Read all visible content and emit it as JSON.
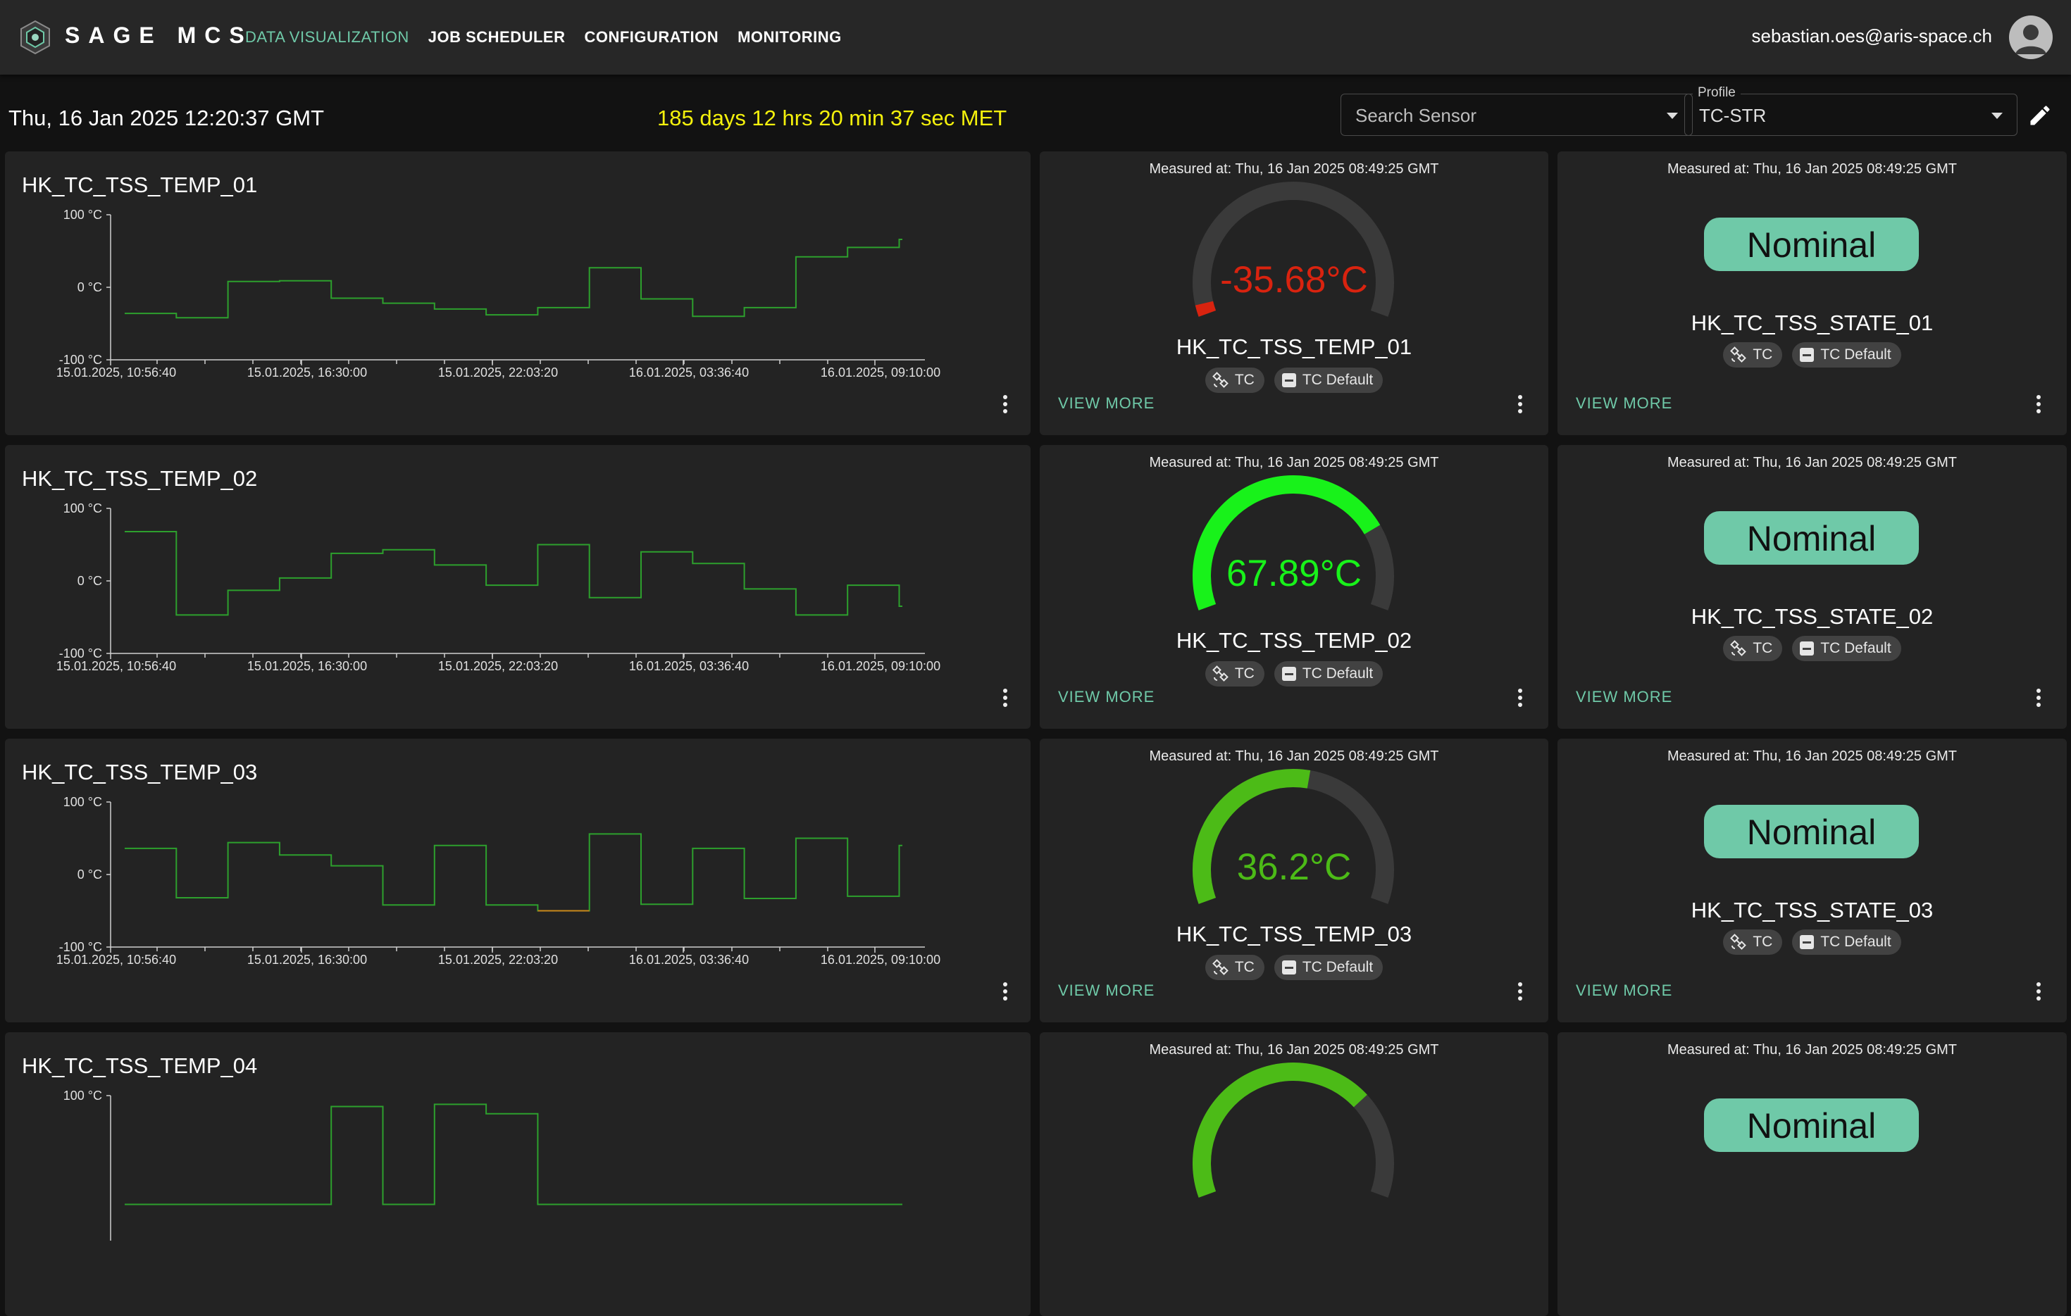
{
  "app": {
    "brand": "SAGE MCS",
    "nav": [
      {
        "label": "DATA VISUALIZATION",
        "active": true
      },
      {
        "label": "JOB SCHEDULER",
        "active": false
      },
      {
        "label": "CONFIGURATION",
        "active": false
      },
      {
        "label": "MONITORING",
        "active": false
      }
    ],
    "user_email": "sebastian.oes@aris-space.ch"
  },
  "toolbar": {
    "datetime": "Thu, 16 Jan 2025 12:20:37 GMT",
    "met": "185 days 12 hrs 20 min 37 sec MET",
    "search_placeholder": "Search Sensor",
    "profile_label": "Profile",
    "profile_value": "TC-STR"
  },
  "colors": {
    "accent": "#6fc9a8",
    "met": "#f4f10c",
    "gauge_red": "#d9230f",
    "gauge_bright_green": "#18f21a",
    "gauge_green": "#4cbb17",
    "line_green": "#2da02d",
    "line_orange": "#c98a1b"
  },
  "icons": [
    "logo-icon",
    "avatar-icon",
    "chevron-down-icon",
    "edit-icon",
    "satellite-icon",
    "minus-square-icon",
    "more-vert-icon"
  ],
  "rows": [
    {
      "chart": {
        "title": "HK_TC_TSS_TEMP_01",
        "type": "line",
        "y_ticks": [
          "100 °C",
          "0 °C",
          "-100 °C"
        ],
        "ylim": [
          -100,
          100
        ],
        "x_ticks": [
          "15.01.2025, 10:56:40",
          "15.01.2025, 16:30:00",
          "15.01.2025, 22:03:20",
          "16.01.2025, 03:36:40",
          "16.01.2025, 09:10:00"
        ],
        "values": [
          -36,
          -42,
          8,
          9,
          -15,
          -22,
          -30,
          -38,
          -28,
          27,
          -16,
          -40,
          -28,
          42,
          55,
          66
        ]
      },
      "gauge": {
        "measured": "Measured at: Thu, 16 Jan 2025 08:49:25 GMT",
        "value_text": "-35.68°C",
        "value": -35.68,
        "min": -40,
        "max": 100,
        "color": "#d9230f",
        "sensor": "HK_TC_TSS_TEMP_01",
        "chip_tc": "TC",
        "chip_profile": "TC Default",
        "view_more": "VIEW MORE"
      },
      "state": {
        "measured": "Measured at: Thu, 16 Jan 2025 08:49:25 GMT",
        "status": "Nominal",
        "sensor": "HK_TC_TSS_STATE_01",
        "chip_tc": "TC",
        "chip_profile": "TC Default",
        "view_more": "VIEW MORE"
      }
    },
    {
      "chart": {
        "title": "HK_TC_TSS_TEMP_02",
        "type": "line",
        "y_ticks": [
          "100 °C",
          "0 °C",
          "-100 °C"
        ],
        "ylim": [
          -100,
          100
        ],
        "x_ticks": [
          "15.01.2025, 10:56:40",
          "15.01.2025, 16:30:00",
          "15.01.2025, 22:03:20",
          "16.01.2025, 03:36:40",
          "16.01.2025, 09:10:00"
        ],
        "values": [
          68,
          -47,
          -13,
          4,
          38,
          43,
          22,
          -6,
          50,
          -23,
          40,
          24,
          -11,
          -47,
          -6,
          -35
        ]
      },
      "gauge": {
        "measured": "Measured at: Thu, 16 Jan 2025 08:49:25 GMT",
        "value_text": "67.89°C",
        "value": 67.89,
        "min": -40,
        "max": 100,
        "color": "#18f21a",
        "sensor": "HK_TC_TSS_TEMP_02",
        "chip_tc": "TC",
        "chip_profile": "TC Default",
        "view_more": "VIEW MORE"
      },
      "state": {
        "measured": "Measured at: Thu, 16 Jan 2025 08:49:25 GMT",
        "status": "Nominal",
        "sensor": "HK_TC_TSS_STATE_02",
        "chip_tc": "TC",
        "chip_profile": "TC Default",
        "view_more": "VIEW MORE"
      }
    },
    {
      "chart": {
        "title": "HK_TC_TSS_TEMP_03",
        "type": "line",
        "y_ticks": [
          "100 °C",
          "0 °C",
          "-100 °C"
        ],
        "ylim": [
          -100,
          100
        ],
        "x_ticks": [
          "15.01.2025, 10:56:40",
          "15.01.2025, 16:30:00",
          "15.01.2025, 22:03:20",
          "16.01.2025, 03:36:40",
          "16.01.2025, 09:10:00"
        ],
        "values": [
          36,
          -32,
          44,
          27,
          12,
          -42,
          40,
          -42,
          -50,
          56,
          -41,
          36,
          -33,
          50,
          -30,
          40
        ]
      },
      "gauge": {
        "measured": "Measured at: Thu, 16 Jan 2025 08:49:25 GMT",
        "value_text": "36.2°C",
        "value": 36.2,
        "min": -40,
        "max": 100,
        "color": "#4cbb17",
        "sensor": "HK_TC_TSS_TEMP_03",
        "chip_tc": "TC",
        "chip_profile": "TC Default",
        "view_more": "VIEW MORE"
      },
      "state": {
        "measured": "Measured at: Thu, 16 Jan 2025 08:49:25 GMT",
        "status": "Nominal",
        "sensor": "HK_TC_TSS_STATE_03",
        "chip_tc": "TC",
        "chip_profile": "TC Default",
        "view_more": "VIEW MORE"
      }
    },
    {
      "chart": {
        "title": "HK_TC_TSS_TEMP_04",
        "type": "line",
        "y_ticks": [
          "100 °C"
        ],
        "ylim": [
          -100,
          100
        ],
        "x_ticks": [],
        "values": [
          -50,
          -50,
          -50,
          -50,
          85,
          -50,
          88,
          75,
          -50,
          -50,
          -50,
          -50,
          -50,
          -50,
          -50,
          -50
        ]
      },
      "gauge": {
        "measured": "Measured at: Thu, 16 Jan 2025 08:49:25 GMT",
        "value_text": "",
        "value": 60,
        "min": -40,
        "max": 100,
        "color": "#4cbb17",
        "sensor": "",
        "chip_tc": "",
        "chip_profile": "",
        "view_more": ""
      },
      "state": {
        "measured": "Measured at: Thu, 16 Jan 2025 08:49:25 GMT",
        "status": "Nominal",
        "sensor": "",
        "chip_tc": "",
        "chip_profile": "",
        "view_more": ""
      }
    }
  ]
}
